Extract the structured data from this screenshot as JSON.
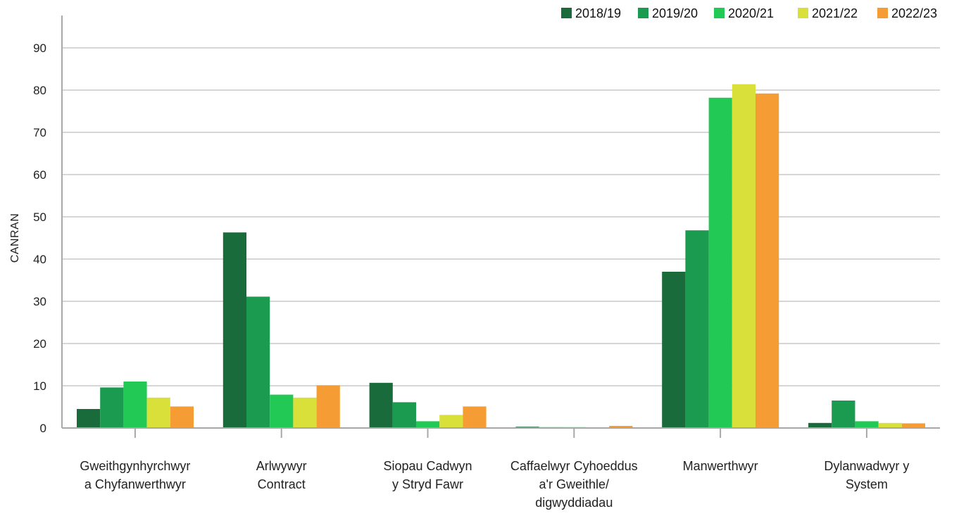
{
  "chart_data": {
    "type": "bar",
    "ylabel": "CANRAN",
    "xlabel": "",
    "ylim": [
      0,
      95
    ],
    "yticks": [
      0,
      10,
      20,
      30,
      40,
      50,
      60,
      70,
      80,
      90
    ],
    "grid": true,
    "legend_position": "top-right",
    "categories": [
      [
        "Gweithgynhyrchwyr",
        "a Chyfanwerthwyr"
      ],
      [
        "Arlwywyr",
        "Contract"
      ],
      [
        "Siopau Cadwyn",
        "y Stryd Fawr"
      ],
      [
        "Caffaelwyr Cyhoeddus",
        "a'r Gweithle/",
        "digwyddiadau"
      ],
      [
        "Manwerthwyr"
      ],
      [
        "Dylanwadwyr y",
        "System"
      ]
    ],
    "series": [
      {
        "name": "2018/19",
        "color": "#1a6b3c",
        "values": [
          4.5,
          46.3,
          10.7,
          0.3,
          37.0,
          1.2
        ]
      },
      {
        "name": "2019/20",
        "color": "#1b9b50",
        "values": [
          9.6,
          31.1,
          6.1,
          0.2,
          46.8,
          6.5
        ]
      },
      {
        "name": "2020/21",
        "color": "#22c955",
        "values": [
          11.0,
          7.9,
          1.6,
          0.2,
          78.2,
          1.6
        ]
      },
      {
        "name": "2021/22",
        "color": "#d9e03a",
        "values": [
          7.2,
          7.2,
          3.1,
          0.1,
          81.4,
          1.2
        ]
      },
      {
        "name": "2022/23",
        "color": "#f59c34",
        "values": [
          5.1,
          10.1,
          5.1,
          0.5,
          79.2,
          1.1
        ]
      }
    ]
  }
}
